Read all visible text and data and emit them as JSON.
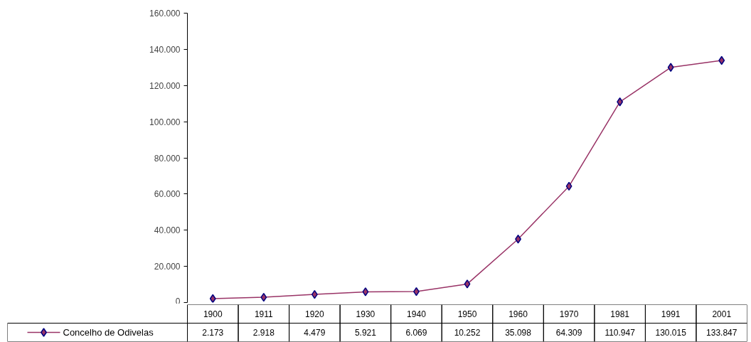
{
  "chart_data": {
    "type": "line",
    "categories": [
      "1900",
      "1911",
      "1920",
      "1930",
      "1940",
      "1950",
      "1960",
      "1970",
      "1981",
      "1991",
      "2001"
    ],
    "series": [
      {
        "name": "Concelho de Odivelas",
        "color": "#993366",
        "values": [
          2173,
          2918,
          4479,
          5921,
          6069,
          10252,
          35098,
          64309,
          110947,
          130015,
          133847
        ],
        "value_labels": [
          "2.173",
          "2.918",
          "4.479",
          "5.921",
          "6.069",
          "10.252",
          "35.098",
          "64.309",
          "110.947",
          "130.015",
          "133.847"
        ]
      }
    ],
    "ylim": [
      0,
      160000
    ],
    "yticks": [
      {
        "value": 0,
        "label": "0"
      },
      {
        "value": 20000,
        "label": "20.000"
      },
      {
        "value": 40000,
        "label": "40.000"
      },
      {
        "value": 60000,
        "label": "60.000"
      },
      {
        "value": 80000,
        "label": "80.000"
      },
      {
        "value": 100000,
        "label": "100.000"
      },
      {
        "value": 120000,
        "label": "120.000"
      },
      {
        "value": 140000,
        "label": "140.000"
      },
      {
        "value": 160000,
        "label": "160.000"
      }
    ],
    "grid": false,
    "marker": "diamond",
    "line_style": "solid",
    "legend": "bottom"
  }
}
